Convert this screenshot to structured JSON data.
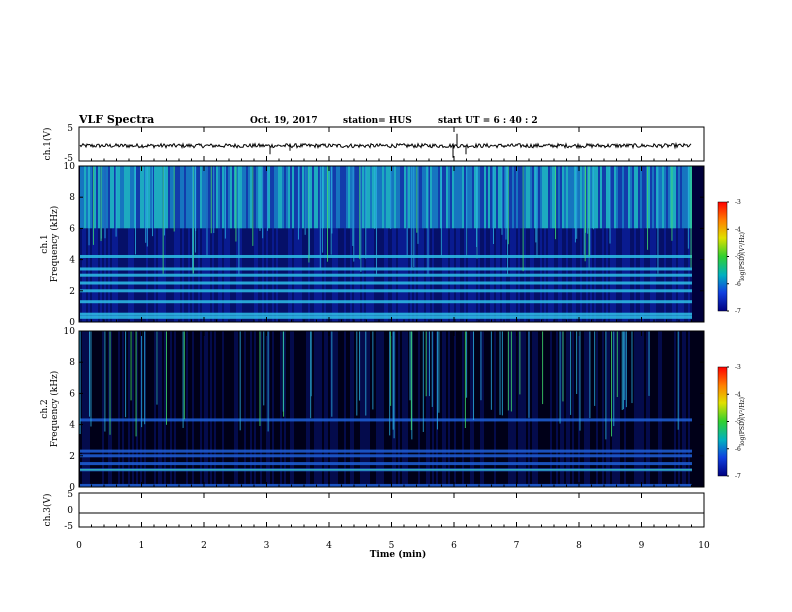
{
  "header": {
    "title": "VLF Spectra",
    "date": "Oct. 19, 2017",
    "station": "station= HUS",
    "start": "start  UT =   6 : 40 : 2"
  },
  "chart_data": [
    {
      "type": "line",
      "name": "ch1-waveform",
      "ylabel": "ch.1(V)",
      "ylim": [
        -5,
        5
      ],
      "ytick_labels": [
        "5",
        "-5"
      ],
      "baseline": -0.5,
      "noise_amplitude": 0.6,
      "x_range_min": [
        0,
        10
      ]
    },
    {
      "type": "heatmap",
      "name": "ch1-spectrogram",
      "ylabel": "ch.1\nFrequency  (kHz)",
      "ylim": [
        0,
        10
      ],
      "ytick_labels": [
        "0",
        "2",
        "4",
        "6",
        "8",
        "10"
      ],
      "colorbar": {
        "label": "log(PSD)(V²/Hz)",
        "range": [
          -7,
          -3
        ],
        "tick_labels": [
          "-3",
          "-4",
          "-5",
          "-6",
          "-7"
        ]
      },
      "features": {
        "high_band_kHz": [
          6,
          10
        ],
        "bands_kHz": [
          0.3,
          0.5,
          1.3,
          2.0,
          2.5,
          3.0,
          3.4,
          4.2
        ],
        "dark_below_kHz": 5.8
      }
    },
    {
      "type": "heatmap",
      "name": "ch2-spectrogram",
      "ylabel": "ch.2\nFrequency  (kHz)",
      "ylim": [
        0,
        10
      ],
      "ytick_labels": [
        "0",
        "2",
        "4",
        "6",
        "8",
        "10"
      ],
      "colorbar": {
        "label": "log(PSD)(V²/Hz)",
        "range": [
          -7,
          -3
        ],
        "tick_labels": [
          "-3",
          "-4",
          "-5",
          "-6",
          "-7"
        ]
      },
      "features": {
        "bands_kHz": [
          0.1,
          1.1,
          1.5,
          2.0,
          2.3,
          4.3
        ]
      }
    },
    {
      "type": "line",
      "name": "ch3-waveform",
      "ylabel": "ch.3(V)",
      "ylim": [
        -5,
        5
      ],
      "ytick_labels": [
        "5",
        "0",
        "-5"
      ],
      "baseline": -1.0,
      "noise_amplitude": 0.0
    }
  ],
  "xaxis": {
    "label": "Time  (min)",
    "range": [
      0,
      10
    ],
    "tick_labels": [
      "0",
      "1",
      "2",
      "3",
      "4",
      "5",
      "6",
      "7",
      "8",
      "9",
      "10"
    ]
  },
  "colors": {
    "spec_bg": "#00003a",
    "axis": "#000000"
  }
}
